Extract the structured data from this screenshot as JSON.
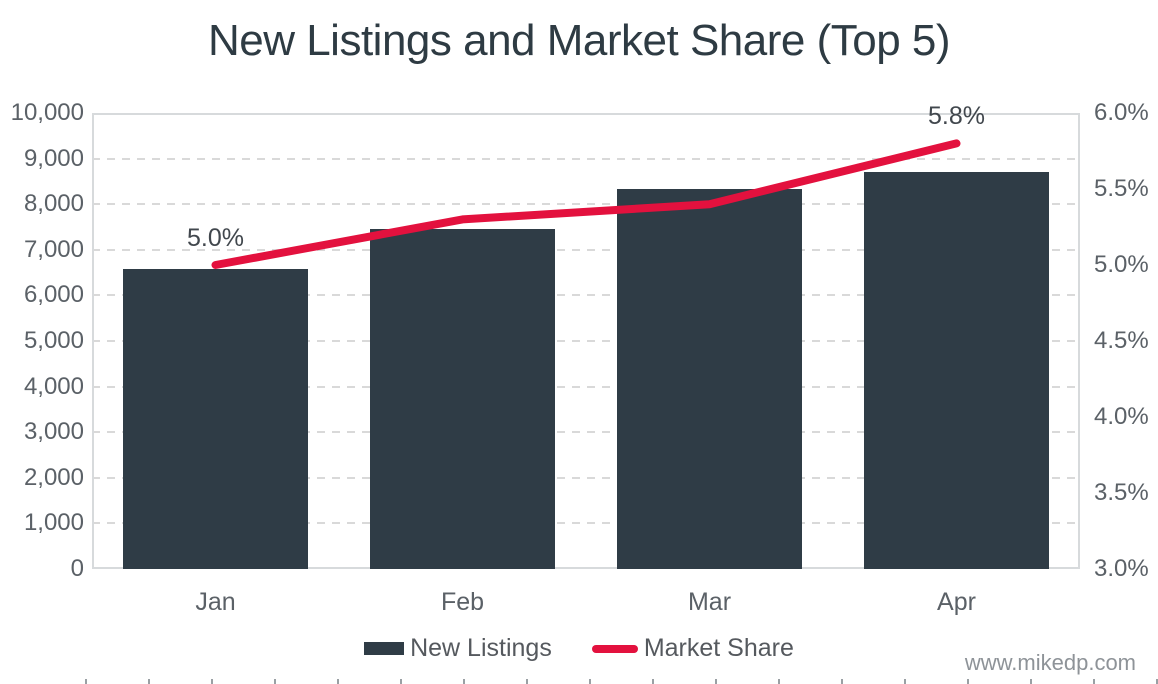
{
  "title": "New Listings and Market Share (Top 5)",
  "watermark": "www.mikedp.com",
  "colors": {
    "bar": "#2f3c46",
    "line": "#e3113e",
    "title_text": "#2e3b43",
    "axis_text": "#5b6167",
    "data_label_text": "#41474d",
    "legend_text": "#55595e",
    "gridline": "#d9d9d9",
    "plot_border": "#d7dadc",
    "watermark_text": "#8e9398"
  },
  "chart_data": {
    "type": "combo-bar-line",
    "title": "New Listings and Market Share (Top 5)",
    "categories": [
      "Jan",
      "Feb",
      "Mar",
      "Apr"
    ],
    "series": [
      {
        "name": "New Listings",
        "type": "bar",
        "axis": "left",
        "values": [
          6580,
          7450,
          8330,
          8710
        ]
      },
      {
        "name": "Market Share",
        "type": "line",
        "axis": "right",
        "unit": "%",
        "values": [
          5.0,
          5.3,
          5.4,
          5.8
        ]
      }
    ],
    "left_axis": {
      "min": 0,
      "max": 10000,
      "step": 1000,
      "tick_labels": [
        "0",
        "1,000",
        "2,000",
        "3,000",
        "4,000",
        "5,000",
        "6,000",
        "7,000",
        "8,000",
        "9,000",
        "10,000"
      ]
    },
    "right_axis": {
      "min": 3.0,
      "max": 6.0,
      "step": 0.5,
      "tick_labels": [
        "3.0%",
        "3.5%",
        "4.0%",
        "4.5%",
        "5.0%",
        "5.5%",
        "6.0%"
      ]
    },
    "annotations": [
      {
        "series": "Market Share",
        "index": 0,
        "text": "5.0%"
      },
      {
        "series": "Market Share",
        "index": 3,
        "text": "5.8%"
      }
    ],
    "grid": "horizontal-dashed",
    "legend_position": "bottom"
  }
}
